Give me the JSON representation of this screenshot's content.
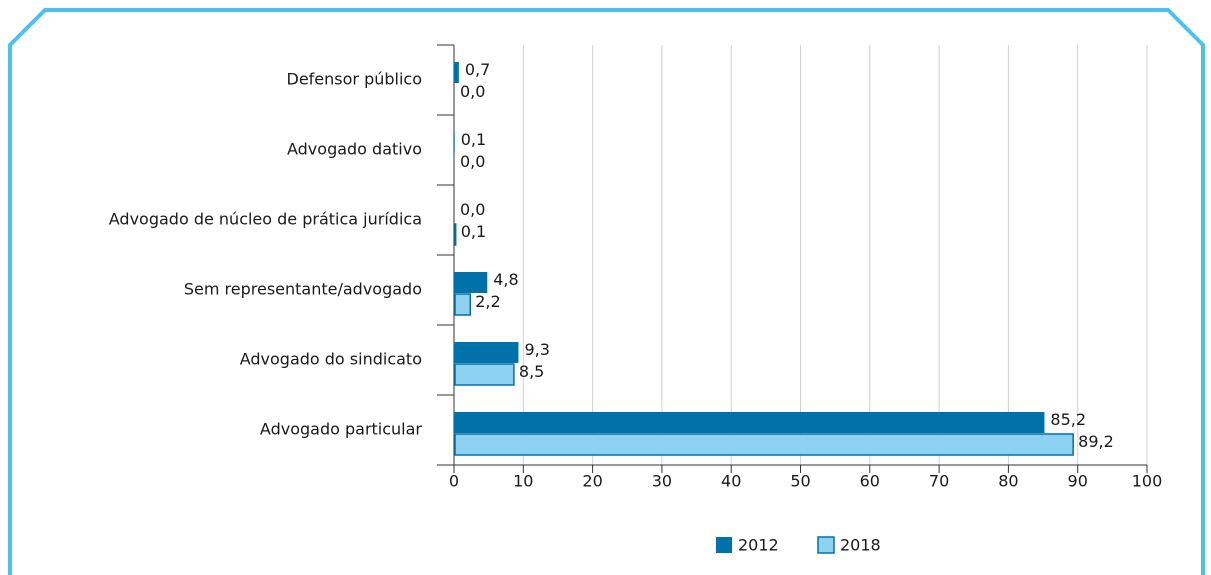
{
  "chart_data": {
    "type": "hbar",
    "categories": [
      "Defensor público",
      "Advogado dativo",
      "Advogado de núcleo de prática jurídica",
      "Sem representante/advogado",
      "Advogado do sindicato",
      "Advogado particular"
    ],
    "series": [
      {
        "name": "2012",
        "color": "#0071a9",
        "values": [
          0.7,
          0.1,
          0.0,
          4.8,
          9.3,
          85.2
        ],
        "value_labels": [
          "0,7",
          "0,1",
          "0,0",
          "4,8",
          "9,3",
          "85,2"
        ]
      },
      {
        "name": "2018",
        "color": "#8dd1f3",
        "values": [
          0.0,
          0.0,
          0.1,
          2.2,
          8.5,
          89.2
        ],
        "value_labels": [
          "0,0",
          "0,0",
          "0,1",
          "2,2",
          "8,5",
          "89,2"
        ]
      }
    ],
    "xlim": [
      0,
      100
    ],
    "xticks": [
      0,
      10,
      20,
      30,
      40,
      50,
      60,
      70,
      80,
      90,
      100
    ],
    "grid": true,
    "legend": "bottom"
  }
}
